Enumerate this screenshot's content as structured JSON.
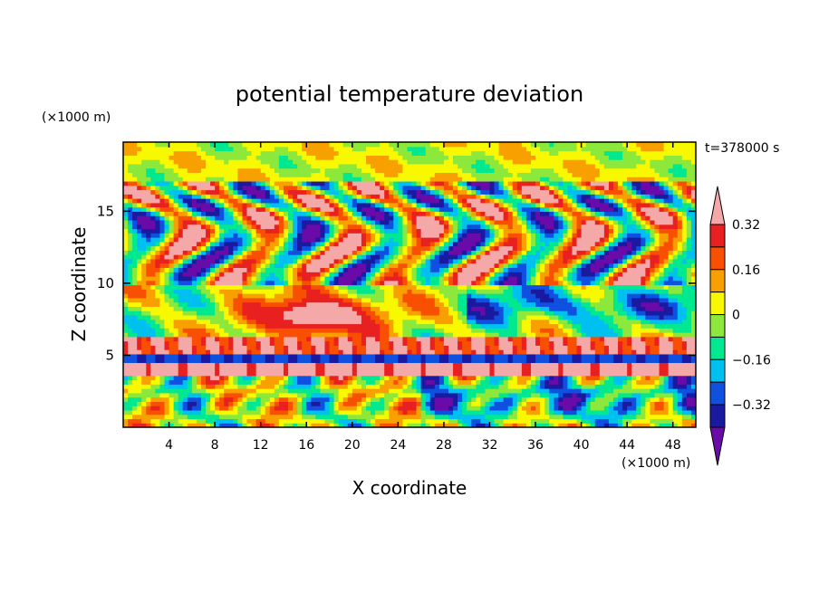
{
  "chart_data": {
    "type": "heatmap",
    "title": "potential temperature deviation",
    "xlabel": "X coordinate",
    "ylabel": "Z coordinate",
    "x_unit": "(×1000 m)",
    "y_unit": "(×1000 m)",
    "time_label": "t=378000 s",
    "xlim": [
      0,
      50
    ],
    "ylim": [
      0,
      19.8
    ],
    "x_ticks": [
      "4",
      "8",
      "12",
      "16",
      "20",
      "24",
      "28",
      "32",
      "36",
      "40",
      "44",
      "48"
    ],
    "x_tick_values": [
      4,
      8,
      12,
      16,
      20,
      24,
      28,
      32,
      36,
      40,
      44,
      48
    ],
    "y_ticks": [
      "5",
      "10",
      "15"
    ],
    "y_tick_values": [
      5,
      10,
      15
    ],
    "colorbar": {
      "levels": [
        -0.4,
        -0.32,
        -0.24,
        -0.16,
        -0.08,
        0,
        0.08,
        0.16,
        0.24,
        0.32,
        0.4
      ],
      "labels": [
        "0.32",
        "0.16",
        "0",
        "−0.16",
        "−0.32"
      ],
      "label_values": [
        0.32,
        0.16,
        0,
        -0.16,
        -0.32
      ],
      "colors": [
        "#6a0aa8",
        "#1a1aa0",
        "#0f50e0",
        "#00c0f0",
        "#00e890",
        "#8ce83a",
        "#f8f800",
        "#f8a000",
        "#f85000",
        "#e82020",
        "#f4a8a8"
      ]
    },
    "bands": [
      {
        "z_range": [
          0,
          3.5
        ],
        "description": "vertical wave cells, mixed"
      },
      {
        "z_range": [
          4,
          6.5
        ],
        "description": "strong horizontal layering near z=5-6"
      },
      {
        "z_range": [
          6.5,
          10
        ],
        "description": "warm blob near x=12-22"
      },
      {
        "z_range": [
          10,
          17
        ],
        "description": "alternating warm and cold patches"
      },
      {
        "z_range": [
          17,
          19.8
        ],
        "description": "near-neutral top layer"
      }
    ]
  }
}
